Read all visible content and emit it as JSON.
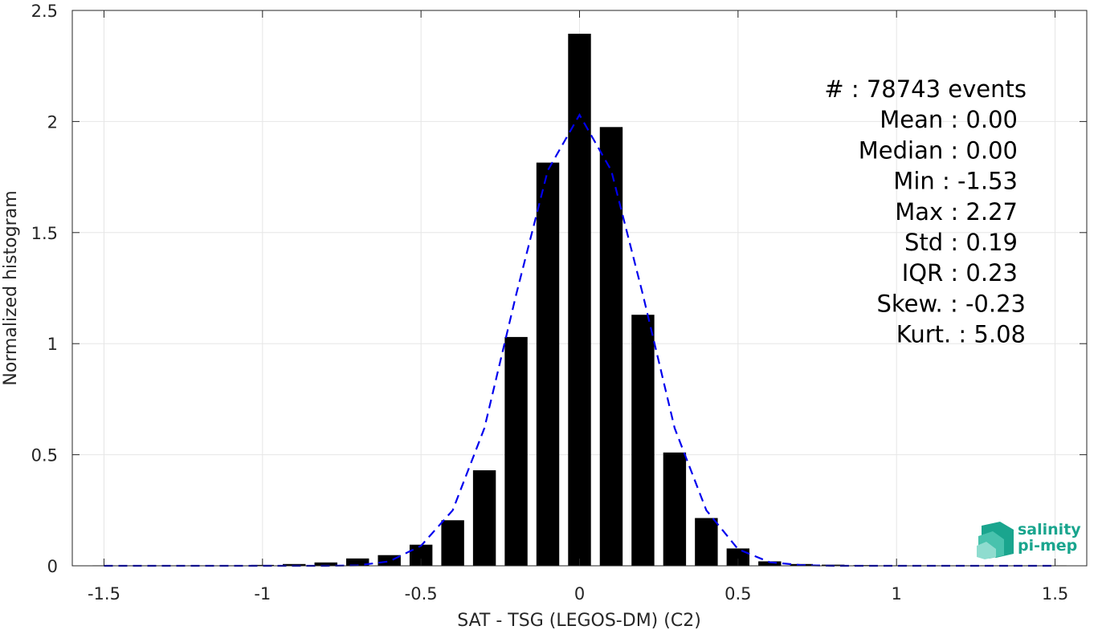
{
  "chart_data": {
    "type": "bar",
    "xlabel": "SAT - TSG (LEGOS-DM) (C2)",
    "ylabel": "Normalized histogram",
    "xlim": [
      -1.6,
      1.6
    ],
    "ylim": [
      0,
      2.5
    ],
    "xticks": [
      "-1.5",
      "-1",
      "-0.5",
      "0",
      "0.5",
      "1",
      "1.5"
    ],
    "xtick_values": [
      -1.5,
      -1,
      -0.5,
      0,
      0.5,
      1,
      1.5
    ],
    "yticks": [
      "0",
      "0.5",
      "1",
      "1.5",
      "2",
      "2.5"
    ],
    "ytick_values": [
      0,
      0.5,
      1,
      1.5,
      2,
      2.5
    ],
    "grid": true,
    "bar_color": "#000000",
    "bars": {
      "x": [
        -1.5,
        -1.4,
        -1.3,
        -1.2,
        -1.1,
        -1.0,
        -0.9,
        -0.8,
        -0.7,
        -0.6,
        -0.5,
        -0.4,
        -0.3,
        -0.2,
        -0.1,
        0.0,
        0.1,
        0.2,
        0.3,
        0.4,
        0.5,
        0.6,
        0.7,
        0.8,
        0.9,
        1.0,
        1.1,
        1.2,
        1.3,
        1.4,
        1.5
      ],
      "values": [
        0.002,
        0.002,
        0.002,
        0.002,
        0.002,
        0.004,
        0.008,
        0.015,
        0.033,
        0.048,
        0.095,
        0.205,
        0.43,
        1.03,
        1.815,
        2.395,
        1.975,
        1.13,
        0.51,
        0.215,
        0.078,
        0.02,
        0.008,
        0.005,
        0.003,
        0.002,
        0.002,
        0.002,
        0.002,
        0.002,
        0.002
      ]
    },
    "fit": {
      "style": "dashed",
      "color": "#0000ee",
      "x": [
        -1.5,
        -1.4,
        -1.3,
        -1.2,
        -1.1,
        -1.0,
        -0.9,
        -0.8,
        -0.7,
        -0.6,
        -0.5,
        -0.4,
        -0.3,
        -0.2,
        -0.1,
        0.0,
        0.1,
        0.2,
        0.3,
        0.4,
        0.5,
        0.6,
        0.7,
        0.8,
        0.9,
        1.0,
        1.1,
        1.2,
        1.3,
        1.4,
        1.5
      ],
      "values": [
        0,
        0,
        0,
        0,
        0,
        0,
        0,
        0,
        0.002,
        0.02,
        0.09,
        0.25,
        0.62,
        1.22,
        1.78,
        2.03,
        1.78,
        1.22,
        0.62,
        0.25,
        0.075,
        0.016,
        0.003,
        0,
        0,
        0,
        0,
        0,
        0,
        0,
        0
      ]
    },
    "annotation_lines": [
      "#  : 78743 events",
      "Mean : 0.00",
      "Median : 0.00",
      "Min : -1.53",
      "Max : 2.27",
      "Std : 0.19",
      "IQR : 0.23",
      "Skew. : -0.23",
      "Kurt. : 5.08"
    ]
  },
  "logo": {
    "line1": "salinity",
    "line2": "pi-mep",
    "color": "#1aa58e"
  }
}
